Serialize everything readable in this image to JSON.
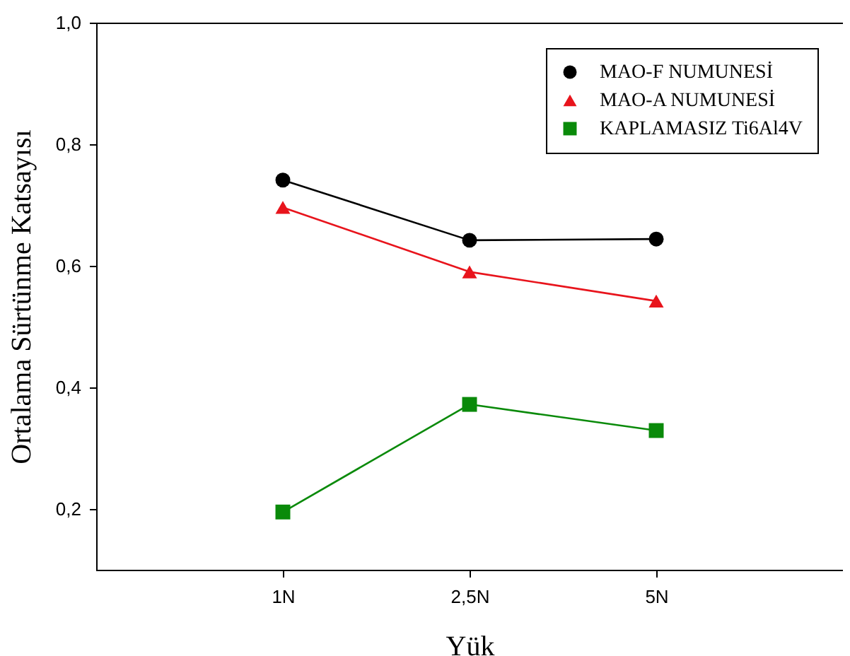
{
  "chart_data": {
    "type": "line",
    "xlabel": "Yük",
    "ylabel": "Ortalama Sürtünme Katsayısı",
    "categories": [
      "1N",
      "2,5N",
      "5N"
    ],
    "series": [
      {
        "name": "MAO-F NUMUNESİ",
        "color": "#000000",
        "marker": "circle",
        "values": [
          0.741,
          0.642,
          0.644
        ]
      },
      {
        "name": "MAO-A NUMUNESİ",
        "color": "#e8141c",
        "marker": "triangle",
        "values": [
          0.696,
          0.59,
          0.542
        ]
      },
      {
        "name": "KAPLAMASIZ Ti6Al4V",
        "color": "#0a8a0a",
        "marker": "square",
        "values": [
          0.195,
          0.372,
          0.329
        ]
      }
    ],
    "ylim": [
      0.1,
      1.0
    ],
    "yticks": [
      {
        "value": 0.2,
        "label": "0,2"
      },
      {
        "value": 0.4,
        "label": "0,4"
      },
      {
        "value": 0.6,
        "label": "0,6"
      },
      {
        "value": 0.8,
        "label": "0,8"
      },
      {
        "value": 1.0,
        "label": "1,0"
      }
    ],
    "grid": false,
    "legend": "top right",
    "line_style": "solid"
  }
}
